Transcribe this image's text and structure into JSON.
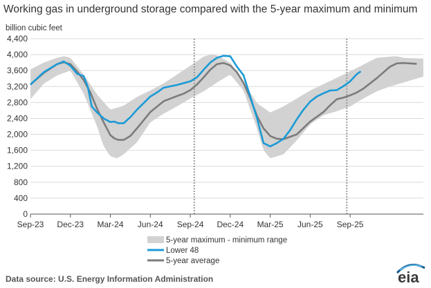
{
  "title": "Working gas in underground  storage compared with the 5-year maximum and minimum",
  "source": "Data source:  U.S. Energy Information Administration",
  "logo_text": "eia",
  "chart_data": {
    "type": "line",
    "ylabel": "billion cubic feet",
    "ylim": [
      0,
      4400
    ],
    "yticks": [
      0,
      400,
      800,
      1200,
      1600,
      2000,
      2400,
      2800,
      3200,
      3600,
      4000,
      4400
    ],
    "ytick_labels": [
      "0",
      "400",
      "800",
      "1,200",
      "1,600",
      "2,000",
      "2,400",
      "2,800",
      "3,200",
      "3,600",
      "4,000",
      "4,400"
    ],
    "xlim": [
      0,
      29.5
    ],
    "xticks": [
      0,
      3,
      6,
      9,
      12,
      15,
      18,
      21,
      24
    ],
    "xtick_labels": [
      "Sep-23",
      "Dec-23",
      "Mar-24",
      "Jun-24",
      "Sep-24",
      "Dec-24",
      "Mar-25",
      "Jun-25",
      "Sep-25"
    ],
    "x_unit": "months since Sep-23",
    "reference_lines": [
      12.3,
      23.75
    ],
    "legend": [
      "5-year maximum - minimum range",
      "Lower 48",
      "5-year average"
    ],
    "colors": {
      "range": "#d2d2d2",
      "lower48": "#1a9ad6",
      "avg": "#7b7b7b",
      "refline": "#999999",
      "grid": "#d9d9d9"
    },
    "series": [
      {
        "name": "5-year maximum",
        "x": [
          0,
          1,
          2,
          2.5,
          3,
          4,
          4.5,
          5,
          6,
          7,
          8,
          9,
          10,
          11,
          12,
          13,
          13.5,
          14,
          15,
          16,
          16.5,
          17,
          18,
          19,
          20,
          21,
          22,
          23,
          24,
          25,
          26,
          27,
          27.5,
          28,
          29.5
        ],
        "values": [
          3630,
          3800,
          3920,
          3960,
          3920,
          3500,
          3250,
          3000,
          2620,
          2720,
          2940,
          3100,
          3280,
          3500,
          3720,
          3950,
          4000,
          3980,
          3800,
          3330,
          3050,
          2780,
          2550,
          2700,
          2900,
          3100,
          3260,
          3420,
          3580,
          3750,
          3920,
          3950,
          3960,
          3920,
          3900
        ]
      },
      {
        "name": "5-year minimum",
        "x": [
          0,
          1,
          2,
          3,
          4,
          5,
          5.5,
          6,
          6.5,
          7,
          8,
          9,
          10,
          11,
          12,
          13,
          14,
          15,
          16,
          17,
          17.5,
          18,
          19,
          20,
          21,
          22,
          23,
          24,
          25,
          26,
          27,
          28,
          29.5
        ],
        "values": [
          2880,
          3270,
          3480,
          3600,
          3020,
          2200,
          1700,
          1450,
          1400,
          1500,
          1800,
          2300,
          2520,
          2700,
          2900,
          3080,
          3300,
          3500,
          3100,
          2150,
          1600,
          1400,
          1500,
          1850,
          2250,
          2480,
          2580,
          2700,
          2900,
          3080,
          3200,
          3300,
          3450
        ]
      },
      {
        "name": "Lower 48",
        "x": [
          0,
          1,
          2,
          2.5,
          3,
          3.5,
          4,
          4.3,
          4.6,
          5,
          5.5,
          6,
          6.3,
          6.6,
          7,
          7.5,
          8,
          9,
          9.5,
          10,
          11,
          12,
          12.5,
          13,
          13.5,
          14,
          14.5,
          15,
          15.5,
          16,
          16.5,
          17,
          17.5,
          18,
          18.5,
          19,
          19.5,
          20,
          20.5,
          21,
          21.5,
          22,
          22.5,
          23,
          23.5,
          24,
          24.5,
          24.8
        ],
        "values": [
          3250,
          3560,
          3760,
          3830,
          3720,
          3520,
          3460,
          3200,
          2700,
          2550,
          2400,
          2310,
          2320,
          2280,
          2280,
          2430,
          2620,
          2950,
          3050,
          3170,
          3240,
          3330,
          3430,
          3620,
          3800,
          3920,
          3970,
          3960,
          3700,
          3480,
          2950,
          2420,
          1780,
          1700,
          1780,
          1890,
          2110,
          2380,
          2620,
          2820,
          2950,
          3030,
          3100,
          3110,
          3210,
          3330,
          3510,
          3580
        ]
      },
      {
        "name": "5-year average",
        "x": [
          0,
          1,
          2,
          2.5,
          3,
          3.5,
          4,
          4.5,
          5,
          5.5,
          6,
          6.3,
          6.6,
          7,
          7.5,
          8,
          9,
          10,
          11,
          11.5,
          12,
          12.5,
          13,
          13.5,
          14,
          14.5,
          15,
          15.5,
          16,
          16.5,
          17,
          17.5,
          18,
          18.5,
          19,
          20,
          21,
          22,
          22.5,
          23,
          23.5,
          24,
          24.5,
          25,
          26,
          27,
          27.5,
          28,
          28.5,
          29
        ],
        "values": [
          3250,
          3540,
          3760,
          3810,
          3760,
          3580,
          3360,
          3050,
          2640,
          2300,
          1980,
          1900,
          1860,
          1860,
          1960,
          2150,
          2560,
          2830,
          2960,
          3020,
          3110,
          3250,
          3430,
          3620,
          3760,
          3790,
          3730,
          3560,
          3290,
          2910,
          2470,
          2150,
          1960,
          1890,
          1880,
          2000,
          2320,
          2560,
          2730,
          2880,
          2920,
          2980,
          3050,
          3150,
          3410,
          3700,
          3780,
          3790,
          3780,
          3770
        ]
      }
    ]
  }
}
